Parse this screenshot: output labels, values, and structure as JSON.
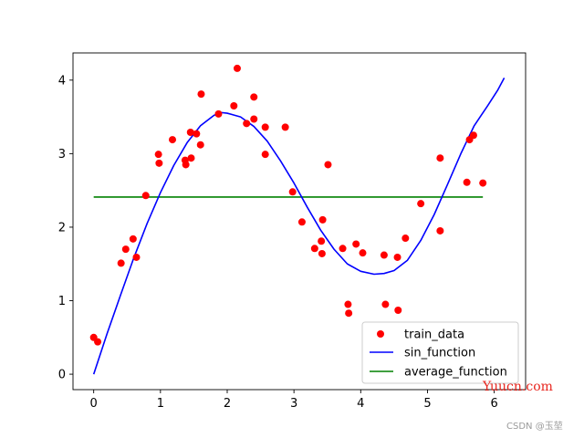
{
  "chart_data": {
    "type": "scatter",
    "title": "",
    "xlabel": "",
    "ylabel": "",
    "xlim": [
      -0.31,
      6.47
    ],
    "ylim": [
      -0.21,
      4.37
    ],
    "xticks": [
      0,
      1,
      2,
      3,
      4,
      5,
      6
    ],
    "yticks": [
      0,
      1,
      2,
      3,
      4
    ],
    "grid": false,
    "legend_position": "lower-right",
    "series": [
      {
        "name": "train_data",
        "kind": "scatter",
        "color": "#ff0000",
        "points": [
          [
            0.0,
            0.5
          ],
          [
            0.06,
            0.44
          ],
          [
            0.41,
            1.51
          ],
          [
            0.48,
            1.7
          ],
          [
            0.59,
            1.84
          ],
          [
            0.64,
            1.59
          ],
          [
            0.78,
            2.43
          ],
          [
            0.97,
            2.99
          ],
          [
            0.98,
            2.87
          ],
          [
            1.18,
            3.19
          ],
          [
            1.37,
            2.91
          ],
          [
            1.38,
            2.85
          ],
          [
            1.45,
            3.29
          ],
          [
            1.46,
            2.94
          ],
          [
            1.54,
            3.27
          ],
          [
            1.6,
            3.12
          ],
          [
            1.61,
            3.81
          ],
          [
            1.87,
            3.54
          ],
          [
            2.1,
            3.65
          ],
          [
            2.15,
            4.16
          ],
          [
            2.29,
            3.41
          ],
          [
            2.4,
            3.77
          ],
          [
            2.4,
            3.47
          ],
          [
            2.57,
            3.36
          ],
          [
            2.57,
            2.99
          ],
          [
            2.87,
            3.36
          ],
          [
            2.98,
            2.48
          ],
          [
            3.12,
            2.07
          ],
          [
            3.31,
            1.71
          ],
          [
            3.41,
            1.81
          ],
          [
            3.42,
            1.64
          ],
          [
            3.43,
            2.1
          ],
          [
            3.51,
            2.85
          ],
          [
            3.73,
            1.71
          ],
          [
            3.81,
            0.95
          ],
          [
            3.82,
            0.83
          ],
          [
            3.93,
            1.77
          ],
          [
            4.03,
            1.65
          ],
          [
            4.35,
            1.62
          ],
          [
            4.37,
            0.95
          ],
          [
            4.55,
            1.59
          ],
          [
            4.56,
            0.87
          ],
          [
            4.67,
            1.85
          ],
          [
            4.9,
            2.32
          ],
          [
            5.19,
            2.94
          ],
          [
            5.19,
            1.95
          ],
          [
            5.59,
            2.61
          ],
          [
            5.63,
            3.19
          ],
          [
            5.69,
            3.25
          ],
          [
            5.83,
            2.6
          ]
        ]
      },
      {
        "name": "sin_function",
        "kind": "line",
        "color": "#0000ff",
        "x_range": [
          0.0,
          6.15
        ],
        "formula_note": "curve passes (0,0), peak ~(1.9,3.56), trough ~(4.35,1.37), ends (6.15,4.03)"
      },
      {
        "name": "average_function",
        "kind": "line",
        "color": "#008000",
        "x_range": [
          0.0,
          5.83
        ],
        "y_value": 2.41
      }
    ],
    "curve_points": [
      [
        0.0,
        0.0
      ],
      [
        0.2,
        0.55
      ],
      [
        0.4,
        1.07
      ],
      [
        0.6,
        1.58
      ],
      [
        0.8,
        2.05
      ],
      [
        1.0,
        2.47
      ],
      [
        1.2,
        2.84
      ],
      [
        1.4,
        3.15
      ],
      [
        1.6,
        3.38
      ],
      [
        1.8,
        3.52
      ],
      [
        1.9,
        3.56
      ],
      [
        2.0,
        3.55
      ],
      [
        2.2,
        3.5
      ],
      [
        2.4,
        3.37
      ],
      [
        2.6,
        3.17
      ],
      [
        2.8,
        2.9
      ],
      [
        3.0,
        2.6
      ],
      [
        3.2,
        2.27
      ],
      [
        3.4,
        1.96
      ],
      [
        3.6,
        1.7
      ],
      [
        3.8,
        1.5
      ],
      [
        4.0,
        1.4
      ],
      [
        4.2,
        1.36
      ],
      [
        4.35,
        1.37
      ],
      [
        4.5,
        1.41
      ],
      [
        4.7,
        1.55
      ],
      [
        4.9,
        1.82
      ],
      [
        5.1,
        2.17
      ],
      [
        5.3,
        2.58
      ],
      [
        5.5,
        3.0
      ],
      [
        5.7,
        3.38
      ],
      [
        5.9,
        3.65
      ],
      [
        6.05,
        3.86
      ],
      [
        6.15,
        4.03
      ]
    ]
  },
  "legend": {
    "entries": [
      {
        "label": "train_data",
        "marker": "dot",
        "color": "#ff0000"
      },
      {
        "label": "sin_function",
        "marker": "line",
        "color": "#0000ff"
      },
      {
        "label": "average_function",
        "marker": "line",
        "color": "#008000"
      }
    ]
  },
  "watermarks": {
    "site": "Yuucn.com",
    "csdn": "CSDN @玉堃"
  }
}
